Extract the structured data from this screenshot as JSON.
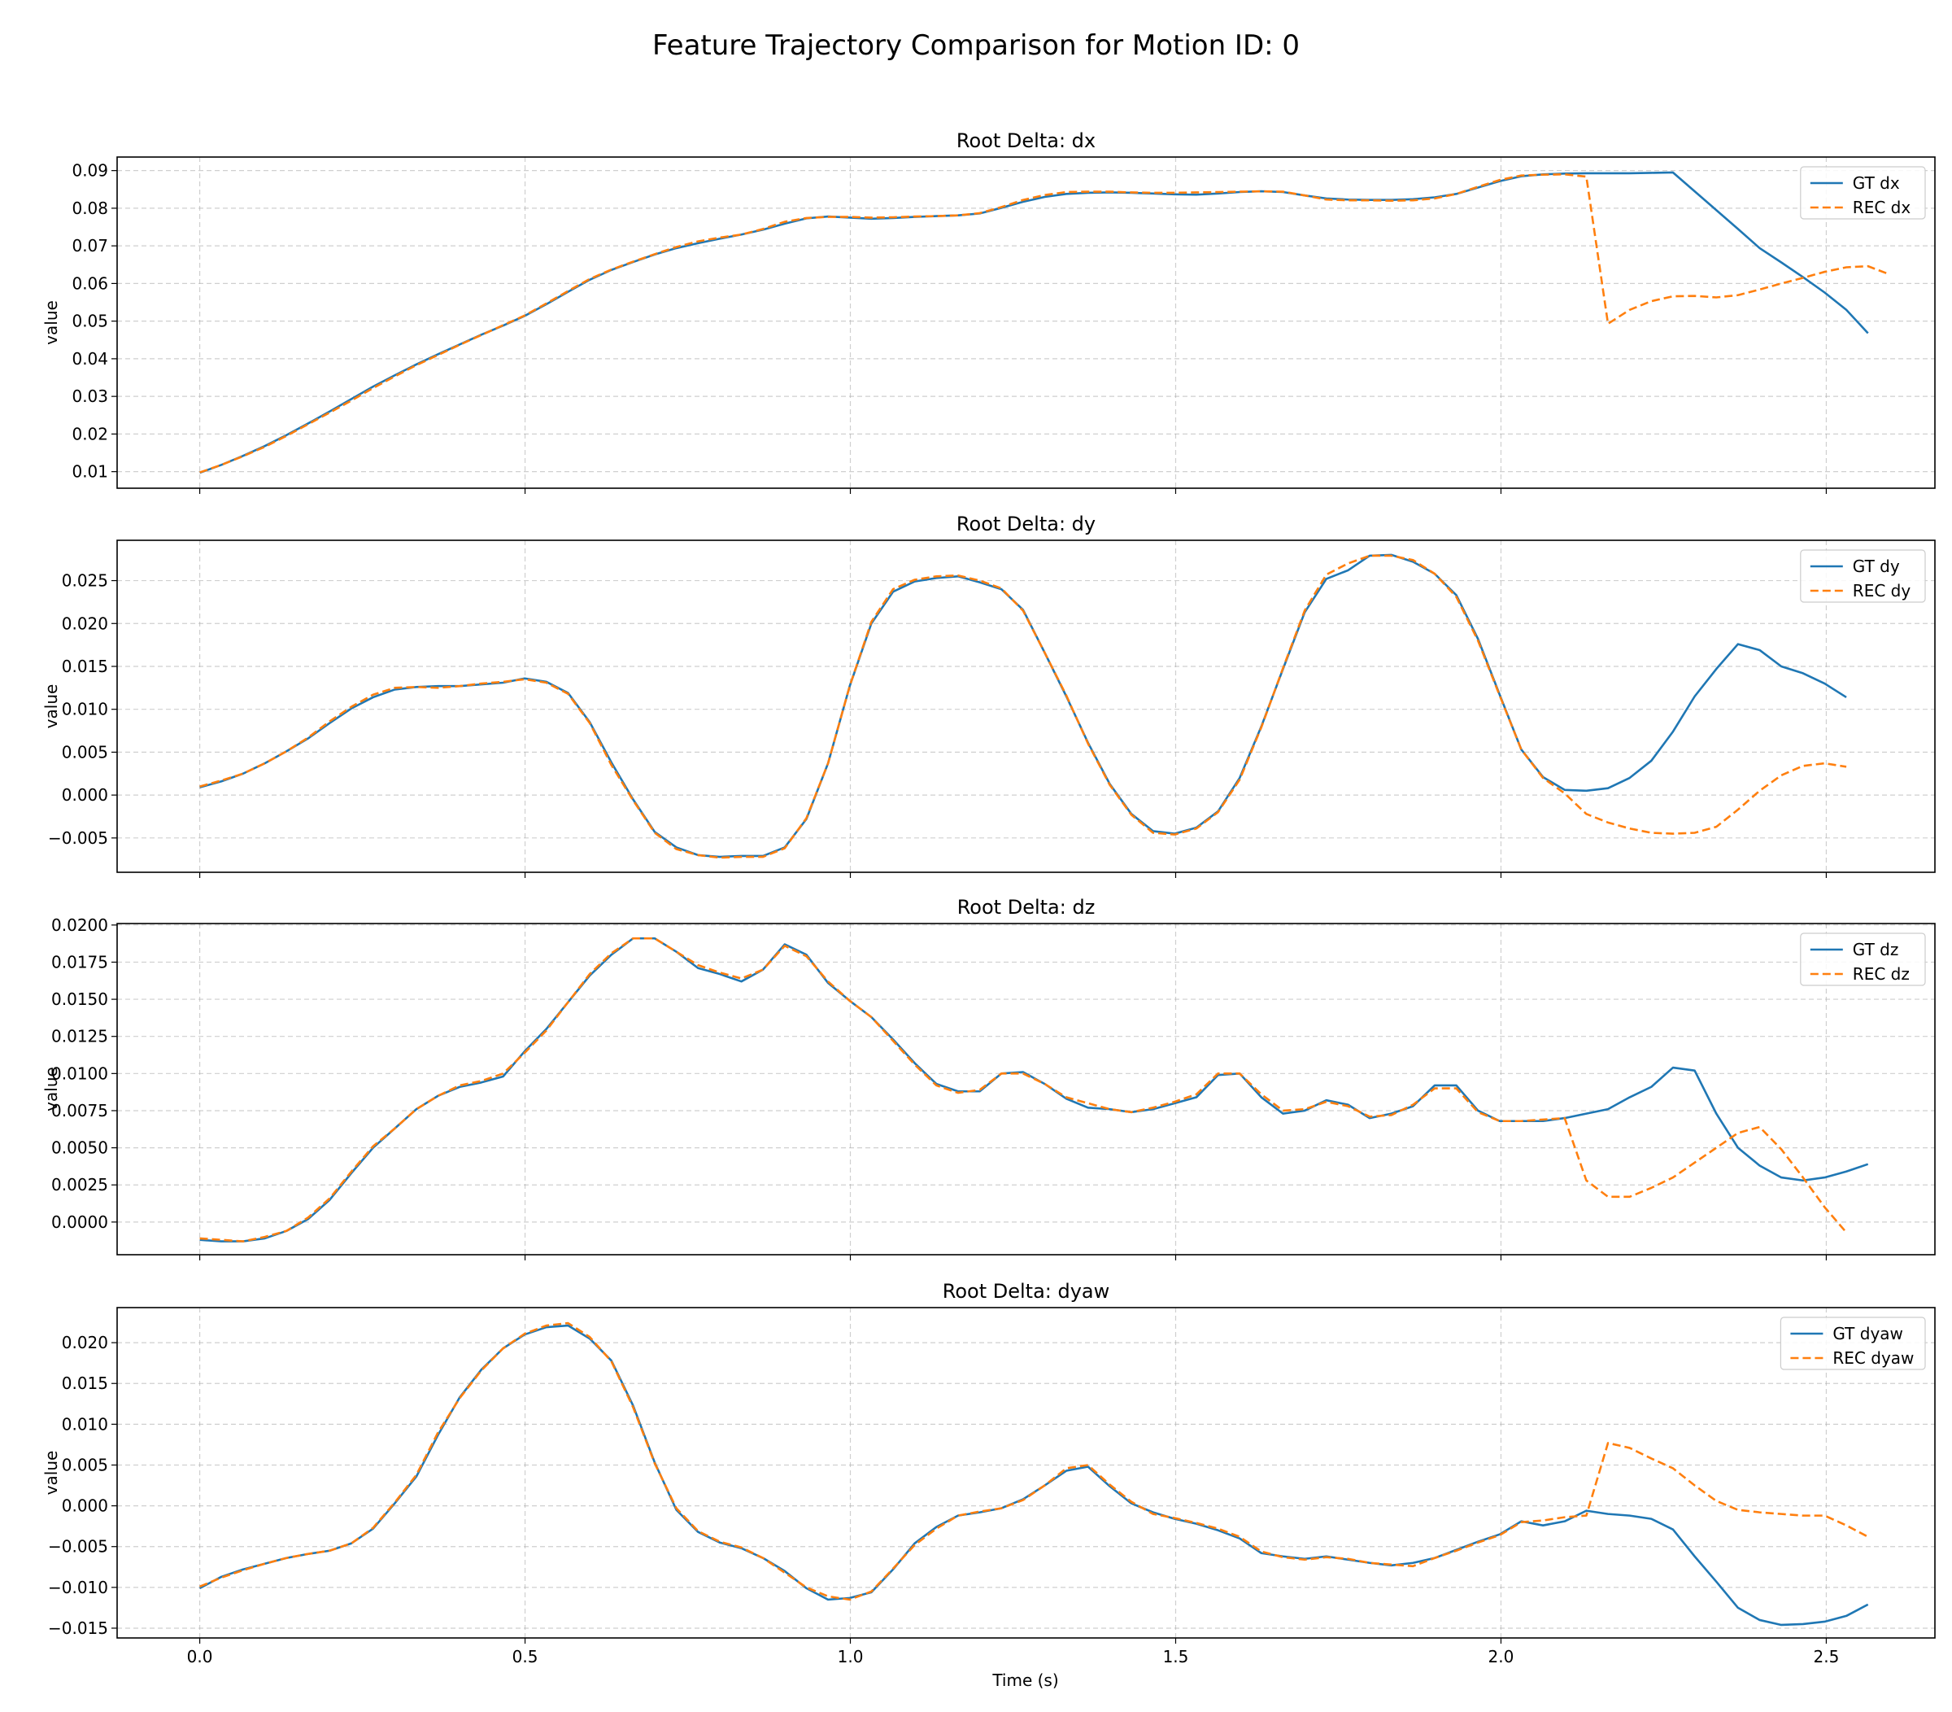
{
  "figure": {
    "title": "Feature Trajectory Comparison for Motion ID: 0",
    "xlabel": "Time (s)",
    "colors": {
      "gt": "#1f77b4",
      "rec": "#ff7f0e",
      "grid": "#b0b0b0"
    }
  },
  "chart_data": [
    {
      "type": "line",
      "title": "Root Delta: dx",
      "ylabel": "value",
      "xlim": [
        -0.127,
        2.667
      ],
      "ylim": [
        0.0056,
        0.0936
      ],
      "yticks": [
        "0.01",
        "0.02",
        "0.03",
        "0.04",
        "0.05",
        "0.06",
        "0.07",
        "0.08",
        "0.09"
      ],
      "grid": true,
      "legend_position": "upper right",
      "x_step": 0.0333,
      "series": [
        {
          "name": "GT dx",
          "style": "solid",
          "values": [
            0.0097,
            0.0118,
            0.0142,
            0.0168,
            0.0197,
            0.0228,
            0.026,
            0.0293,
            0.0326,
            0.0356,
            0.0385,
            0.0412,
            0.0438,
            0.0464,
            0.0488,
            0.0514,
            0.0545,
            0.0578,
            0.061,
            0.0636,
            0.0657,
            0.0677,
            0.0694,
            0.0707,
            0.0719,
            0.073,
            0.0743,
            0.0759,
            0.0773,
            0.0778,
            0.0775,
            0.0772,
            0.0774,
            0.0777,
            0.0779,
            0.0781,
            0.0786,
            0.0801,
            0.0817,
            0.083,
            0.0838,
            0.0841,
            0.0842,
            0.0841,
            0.0839,
            0.0837,
            0.0836,
            0.0839,
            0.0843,
            0.0845,
            0.0843,
            0.0834,
            0.0826,
            0.0823,
            0.0822,
            0.0822,
            0.0824,
            0.0829,
            0.0838,
            0.0855,
            0.0872,
            0.0885,
            0.089,
            0.0892,
            0.0893,
            0.0893,
            0.0893,
            0.0894,
            0.0895,
            0.0845,
            0.0795,
            0.0745,
            0.0694,
            0.0656,
            0.0617,
            0.0576,
            0.053,
            0.0468
          ]
        },
        {
          "name": "REC dx",
          "style": "dashed",
          "values": [
            0.0098,
            0.0118,
            0.0141,
            0.0166,
            0.0195,
            0.0226,
            0.0257,
            0.0289,
            0.0322,
            0.0353,
            0.0383,
            0.041,
            0.0437,
            0.0463,
            0.0489,
            0.0515,
            0.0547,
            0.058,
            0.0612,
            0.0637,
            0.0658,
            0.0678,
            0.0697,
            0.0712,
            0.0722,
            0.073,
            0.0745,
            0.0764,
            0.0774,
            0.0777,
            0.0777,
            0.0775,
            0.0776,
            0.0778,
            0.0779,
            0.0781,
            0.0787,
            0.0803,
            0.0822,
            0.0835,
            0.0843,
            0.0844,
            0.0844,
            0.0842,
            0.0841,
            0.0841,
            0.0842,
            0.0843,
            0.0844,
            0.0845,
            0.0844,
            0.0834,
            0.0823,
            0.0821,
            0.0821,
            0.082,
            0.0821,
            0.0826,
            0.0838,
            0.0857,
            0.0875,
            0.0887,
            0.0889,
            0.089,
            0.0884,
            0.0493,
            0.053,
            0.0553,
            0.0566,
            0.0567,
            0.0563,
            0.0569,
            0.0584,
            0.06,
            0.0615,
            0.0631,
            0.0643,
            0.0646,
            0.0624
          ]
        }
      ]
    },
    {
      "type": "line",
      "title": "Root Delta: dy",
      "ylabel": "value",
      "xlim": [
        -0.127,
        2.667
      ],
      "ylim": [
        -0.009,
        0.0297
      ],
      "yticks": [
        "−0.005",
        "0.000",
        "0.005",
        "0.010",
        "0.015",
        "0.020",
        "0.025"
      ],
      "grid": true,
      "legend_position": "upper right",
      "x_step": 0.0333,
      "series": [
        {
          "name": "GT dy",
          "style": "solid",
          "values": [
            0.0009,
            0.0016,
            0.0025,
            0.0037,
            0.0051,
            0.0066,
            0.0084,
            0.0101,
            0.0114,
            0.0123,
            0.0126,
            0.0127,
            0.0127,
            0.0129,
            0.0131,
            0.0136,
            0.0132,
            0.0119,
            0.0085,
            0.0038,
            -0.0005,
            -0.0043,
            -0.0061,
            -0.007,
            -0.0072,
            -0.0071,
            -0.0071,
            -0.0061,
            -0.0028,
            0.0037,
            0.0127,
            0.02,
            0.0237,
            0.0249,
            0.0253,
            0.0255,
            0.0248,
            0.024,
            0.0216,
            0.0166,
            0.0115,
            0.0061,
            0.0013,
            -0.0022,
            -0.0042,
            -0.0045,
            -0.0038,
            -0.0019,
            0.002,
            0.008,
            0.0147,
            0.0213,
            0.0252,
            0.0262,
            0.0279,
            0.028,
            0.0272,
            0.0258,
            0.0233,
            0.0182,
            0.0117,
            0.0053,
            0.0021,
            0.0006,
            0.0005,
            0.0008,
            0.002,
            0.004,
            0.0074,
            0.0115,
            0.0147,
            0.0176,
            0.0169,
            0.015,
            0.0142,
            0.013,
            0.0114
          ]
        },
        {
          "name": "REC dy",
          "style": "dashed",
          "values": [
            0.001,
            0.0017,
            0.0025,
            0.0037,
            0.0051,
            0.0067,
            0.0086,
            0.0103,
            0.0117,
            0.0125,
            0.0126,
            0.0125,
            0.0127,
            0.013,
            0.0132,
            0.0135,
            0.0131,
            0.0118,
            0.0084,
            0.0035,
            -0.0006,
            -0.0044,
            -0.0063,
            -0.007,
            -0.0073,
            -0.0072,
            -0.0072,
            -0.0062,
            -0.0027,
            0.0037,
            0.0127,
            0.0202,
            0.024,
            0.0251,
            0.0255,
            0.0256,
            0.025,
            0.0241,
            0.0215,
            0.0166,
            0.0116,
            0.006,
            0.0012,
            -0.0023,
            -0.0044,
            -0.0046,
            -0.0039,
            -0.002,
            0.0018,
            0.0079,
            0.0148,
            0.0215,
            0.0257,
            0.027,
            0.0279,
            0.0279,
            0.0274,
            0.0258,
            0.0231,
            0.018,
            0.0116,
            0.0053,
            0.002,
            0.0002,
            -0.0022,
            -0.0032,
            -0.0039,
            -0.0044,
            -0.0045,
            -0.0044,
            -0.0037,
            -0.0017,
            0.0005,
            0.0023,
            0.0034,
            0.0037,
            0.0033
          ]
        }
      ]
    },
    {
      "type": "line",
      "title": "Root Delta: dz",
      "ylabel": "value",
      "xlim": [
        -0.127,
        2.667
      ],
      "ylim": [
        -0.0022,
        0.0201
      ],
      "yticks": [
        "0.0000",
        "0.0025",
        "0.0050",
        "0.0075",
        "0.0100",
        "0.0125",
        "0.0150",
        "0.0175",
        "0.0200"
      ],
      "grid": true,
      "legend_position": "upper right",
      "x_step": 0.0333,
      "series": [
        {
          "name": "GT dz",
          "style": "solid",
          "values": [
            -0.0012,
            -0.0013,
            -0.0013,
            -0.0011,
            -0.0006,
            0.0002,
            0.0015,
            0.0033,
            0.005,
            0.0063,
            0.0076,
            0.0085,
            0.0091,
            0.0094,
            0.0098,
            0.0115,
            0.013,
            0.0148,
            0.0166,
            0.018,
            0.0191,
            0.0191,
            0.0182,
            0.0171,
            0.0167,
            0.0162,
            0.017,
            0.0187,
            0.018,
            0.0161,
            0.0149,
            0.0138,
            0.0123,
            0.0107,
            0.0093,
            0.0088,
            0.0088,
            0.01,
            0.0101,
            0.0093,
            0.0083,
            0.0077,
            0.0076,
            0.0074,
            0.0076,
            0.008,
            0.0084,
            0.0099,
            0.01,
            0.0084,
            0.0073,
            0.0075,
            0.0082,
            0.0079,
            0.007,
            0.0073,
            0.0078,
            0.0092,
            0.0092,
            0.0075,
            0.0068,
            0.0068,
            0.0068,
            0.007,
            0.0073,
            0.0076,
            0.0084,
            0.0091,
            0.0104,
            0.0102,
            0.0073,
            0.005,
            0.0038,
            0.003,
            0.0028,
            0.003,
            0.0034,
            0.0039
          ]
        },
        {
          "name": "REC dz",
          "style": "dashed",
          "values": [
            -0.0011,
            -0.0012,
            -0.0013,
            -0.001,
            -0.0006,
            0.0003,
            0.0016,
            0.0034,
            0.0051,
            0.0063,
            0.0076,
            0.0085,
            0.0092,
            0.0095,
            0.01,
            0.0114,
            0.0129,
            0.0148,
            0.0167,
            0.0181,
            0.0191,
            0.0191,
            0.0182,
            0.0173,
            0.0168,
            0.0164,
            0.017,
            0.0186,
            0.0179,
            0.0162,
            0.0149,
            0.0138,
            0.0122,
            0.0106,
            0.0092,
            0.0087,
            0.0089,
            0.01,
            0.01,
            0.0093,
            0.0084,
            0.008,
            0.0076,
            0.0074,
            0.0077,
            0.0081,
            0.0086,
            0.01,
            0.01,
            0.0086,
            0.0075,
            0.0076,
            0.0081,
            0.0078,
            0.0071,
            0.0072,
            0.0079,
            0.009,
            0.009,
            0.0074,
            0.0068,
            0.0068,
            0.0069,
            0.007,
            0.0028,
            0.0017,
            0.0017,
            0.0023,
            0.003,
            0.004,
            0.005,
            0.006,
            0.0064,
            0.0049,
            0.003,
            0.001,
            -0.0007
          ]
        }
      ]
    },
    {
      "type": "line",
      "title": "Root Delta: dyaw",
      "ylabel": "value",
      "xlim": [
        -0.127,
        2.667
      ],
      "ylim": [
        -0.0162,
        0.0243
      ],
      "yticks": [
        "−0.015",
        "−0.010",
        "−0.005",
        "0.000",
        "0.005",
        "0.010",
        "0.015",
        "0.020"
      ],
      "grid": true,
      "legend_position": "upper right",
      "x_step": 0.0333,
      "series": [
        {
          "name": "GT dyaw",
          "style": "solid",
          "values": [
            -0.0101,
            -0.0087,
            -0.0078,
            -0.0071,
            -0.0064,
            -0.0059,
            -0.0055,
            -0.0046,
            -0.0028,
            0.0003,
            0.0036,
            0.0087,
            0.0133,
            0.0167,
            0.0193,
            0.021,
            0.0219,
            0.0221,
            0.0205,
            0.0178,
            0.0123,
            0.0053,
            -0.0005,
            -0.0032,
            -0.0045,
            -0.0052,
            -0.0064,
            -0.008,
            -0.0101,
            -0.0115,
            -0.0113,
            -0.0106,
            -0.0078,
            -0.0046,
            -0.0026,
            -0.0012,
            -0.0008,
            -0.0003,
            0.0008,
            0.0025,
            0.0043,
            0.0048,
            0.0024,
            0.0003,
            -0.0008,
            -0.0016,
            -0.0022,
            -0.003,
            -0.004,
            -0.0058,
            -0.0062,
            -0.0065,
            -0.0062,
            -0.0066,
            -0.007,
            -0.0073,
            -0.007,
            -0.0064,
            -0.0054,
            -0.0044,
            -0.0035,
            -0.0019,
            -0.0024,
            -0.0019,
            -0.0006,
            -0.001,
            -0.0012,
            -0.0016,
            -0.0029,
            -0.0062,
            -0.0093,
            -0.0125,
            -0.014,
            -0.0146,
            -0.0145,
            -0.0142,
            -0.0135,
            -0.0121
          ]
        },
        {
          "name": "REC dyaw",
          "style": "dashed",
          "values": [
            -0.0099,
            -0.0088,
            -0.0079,
            -0.0071,
            -0.0064,
            -0.0059,
            -0.0055,
            -0.0046,
            -0.0027,
            0.0004,
            0.0038,
            0.009,
            0.0132,
            0.0166,
            0.0193,
            0.0211,
            0.0221,
            0.0224,
            0.0207,
            0.0177,
            0.0121,
            0.0052,
            -0.0003,
            -0.0031,
            -0.0044,
            -0.0051,
            -0.0064,
            -0.0082,
            -0.01,
            -0.0111,
            -0.0115,
            -0.0105,
            -0.0077,
            -0.0048,
            -0.0028,
            -0.0012,
            -0.0007,
            -0.0003,
            0.0007,
            0.0025,
            0.0046,
            0.005,
            0.0026,
            0.0005,
            -0.001,
            -0.0015,
            -0.0021,
            -0.0028,
            -0.0038,
            -0.0056,
            -0.0063,
            -0.0066,
            -0.0063,
            -0.0065,
            -0.007,
            -0.0072,
            -0.0074,
            -0.0064,
            -0.0055,
            -0.0045,
            -0.0036,
            -0.002,
            -0.0018,
            -0.0014,
            -0.0012,
            0.0077,
            0.0071,
            0.0058,
            0.0046,
            0.0025,
            0.0006,
            -0.0005,
            -0.0008,
            -0.001,
            -0.0012,
            -0.0012,
            -0.0024,
            -0.0038
          ]
        }
      ]
    }
  ],
  "x_axis": {
    "ticks": [
      0.0,
      0.5,
      1.0,
      1.5,
      2.0,
      2.5
    ],
    "tick_labels": [
      "0.0",
      "0.5",
      "1.0",
      "1.5",
      "2.0",
      "2.5"
    ]
  }
}
